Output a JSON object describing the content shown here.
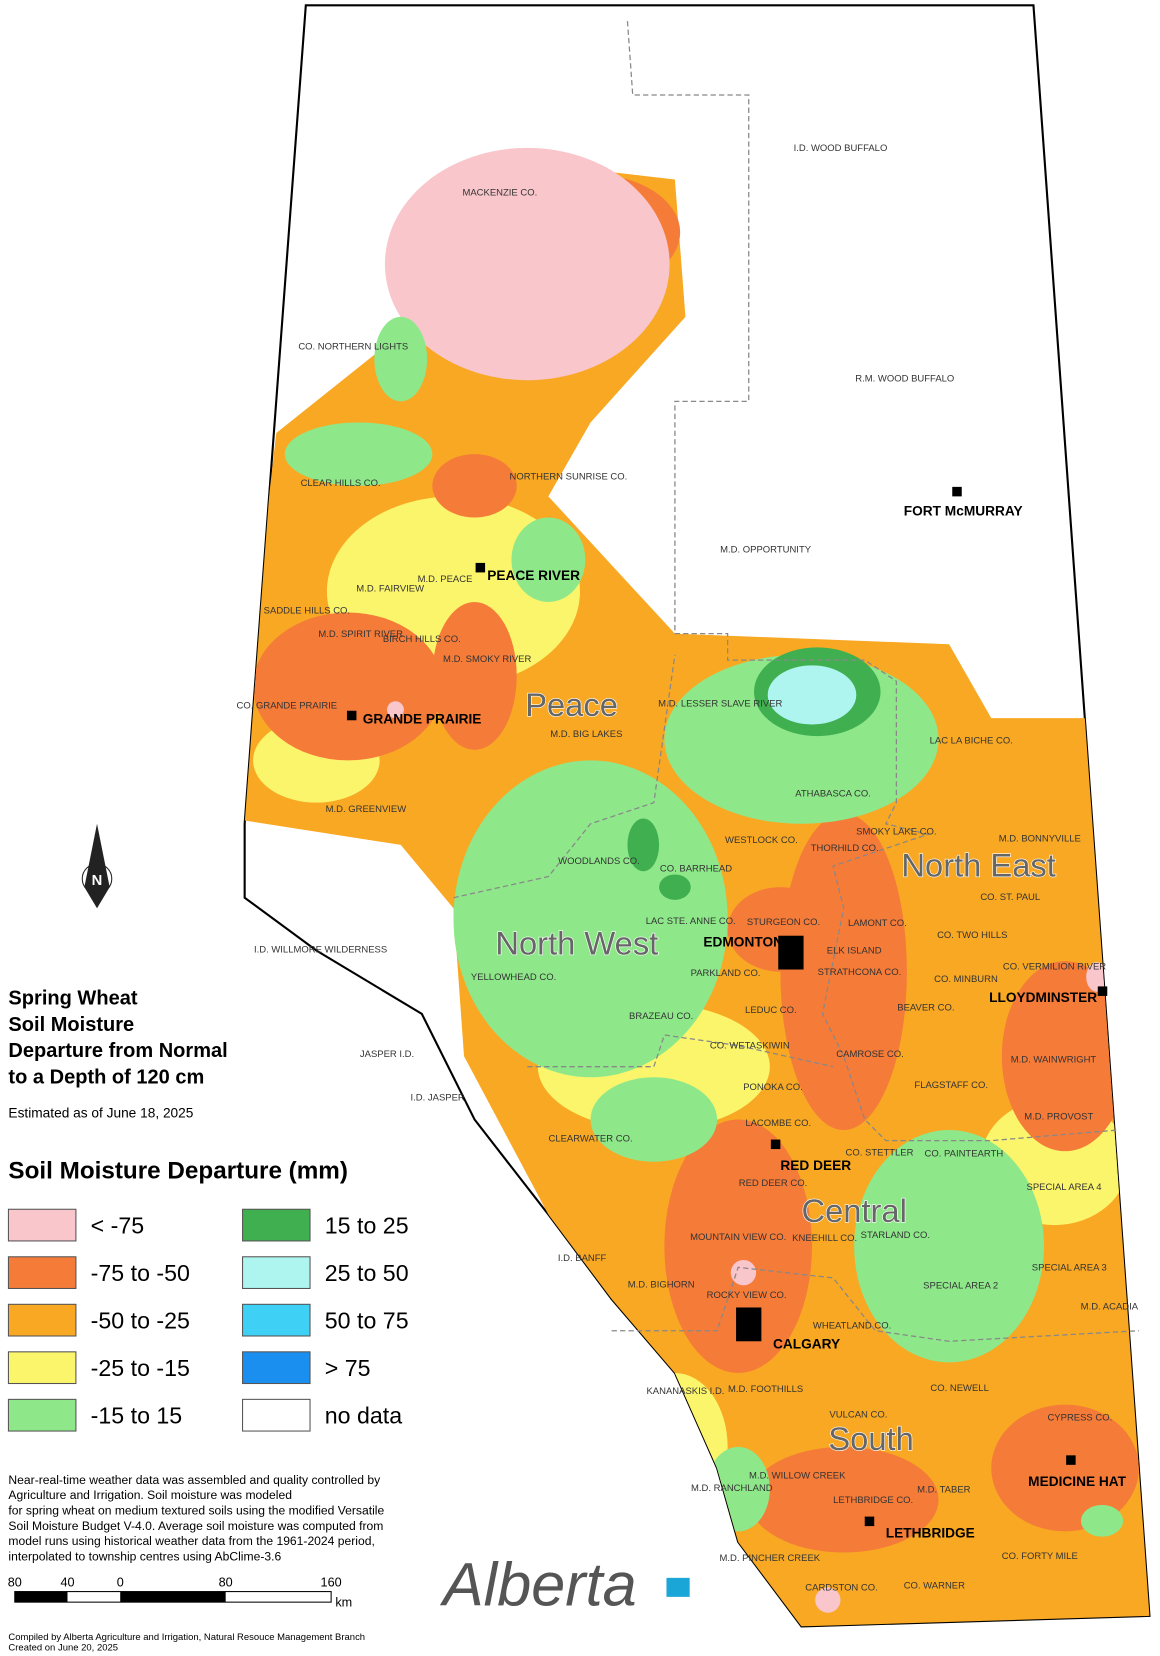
{
  "title_lines": [
    "Spring Wheat",
    "Soil Moisture",
    "Departure from Normal",
    "to a Depth of 120 cm"
  ],
  "estimate_date": "Estimated as of June 18, 2025",
  "legend": {
    "title": "Soil Moisture Departure (mm)",
    "items": [
      {
        "label": "< -75",
        "color": "#f8c6cb"
      },
      {
        "label": "-75 to -50",
        "color": "#f57b39"
      },
      {
        "label": "-50 to -25",
        "color": "#f8a823"
      },
      {
        "label": "-25 to -15",
        "color": "#fbf56b"
      },
      {
        "label": "-15 to 15",
        "color": "#8ee88a"
      },
      {
        "label": "15 to 25",
        "color": "#3faf4f"
      },
      {
        "label": "25 to 50",
        "color": "#aef4ef"
      },
      {
        "label": "50 to 75",
        "color": "#3ed1f5"
      },
      {
        "label": "> 75",
        "color": "#1b8fef"
      },
      {
        "label": "no data",
        "color": "#ffffff"
      }
    ]
  },
  "regions": [
    "Peace",
    "North West",
    "North East",
    "Central",
    "South"
  ],
  "cities": [
    "FORT McMURRAY",
    "PEACE RIVER",
    "GRANDE PRAIRIE",
    "EDMONTON",
    "LLOYDMINSTER",
    "RED DEER",
    "CALGARY",
    "MEDICINE HAT",
    "LETHBRIDGE"
  ],
  "municipalities": [
    "I.D. WOOD BUFFALO",
    "MACKENZIE CO.",
    "CO. NORTHERN LIGHTS",
    "R.M. WOOD BUFFALO",
    "CLEAR HILLS CO.",
    "NORTHERN SUNRISE CO.",
    "M.D. OPPORTUNITY",
    "M.D. FAIRVIEW",
    "M.D. PEACE",
    "SADDLE HILLS CO.",
    "M.D. SPIRIT RIVER",
    "BIRCH HILLS CO.",
    "M.D. SMOKY RIVER",
    "CO. GRANDE PRAIRIE",
    "M.D. BIG LAKES",
    "M.D. LESSER SLAVE RIVER",
    "LAC LA BICHE CO.",
    "M.D. GREENVIEW",
    "ATHABASCA CO.",
    "SMOKY LAKE CO.",
    "M.D. BONNYVILLE",
    "WESTLOCK CO.",
    "THORHILD CO.",
    "WOODLANDS CO.",
    "CO. BARRHEAD",
    "CO. ST. PAUL",
    "LAMONT CO.",
    "STURGEON CO.",
    "LAC STE. ANNE CO.",
    "CO. TWO HILLS",
    "I.D. WILLMORE WILDERNESS",
    "ELK ISLAND",
    "STRATHCONA CO.",
    "PARKLAND CO.",
    "YELLOWHEAD CO.",
    "CO. MINBURN",
    "CO. VERMILION RIVER",
    "BEAVER CO.",
    "LEDUC CO.",
    "BRAZEAU CO.",
    "JASPER I.D.",
    "CO. WETASKIWIN",
    "CAMROSE CO.",
    "M.D. WAINWRIGHT",
    "FLAGSTAFF CO.",
    "PONOKA CO.",
    "I.D. JASPER",
    "M.D. PROVOST",
    "LACOMBE CO.",
    "CLEARWATER CO.",
    "CO. STETTLER",
    "CO. PAINTEARTH",
    "RED DEER CO.",
    "SPECIAL AREA 4",
    "STARLAND CO.",
    "MOUNTAIN VIEW CO.",
    "KNEEHILL CO.",
    "I.D. BANFF",
    "SPECIAL AREA 3",
    "M.D. BIGHORN",
    "SPECIAL AREA 2",
    "ROCKY VIEW CO.",
    "M.D. ACADIA",
    "WHEATLAND CO.",
    "CO. NEWELL",
    "M.D. FOOTHILLS",
    "KANANASKIS I.D.",
    "CYPRESS CO.",
    "VULCAN CO.",
    "M.D. WILLOW CREEK",
    "M.D. RANCHLAND",
    "M.D. TABER",
    "LETHBRIDGE CO.",
    "M.D. PINCHER CREEK",
    "CO. FORTY MILE",
    "CARDSTON CO.",
    "CO. WARNER"
  ],
  "notes": [
    "Near-real-time weather data was assembled and quality controlled by",
    "Agriculture and Irrigation.  Soil moisture was modeled",
    "for spring wheat on medium textured soils using the modified Versatile",
    "Soil Moisture Budget V-4.0.  Average soil moisture was computed from",
    "model runs using historical weather data from the 1961-2024 period,",
    "interpolated to township centres using AbClime-3.6"
  ],
  "scale": {
    "ticks": [
      "80",
      "40",
      "0",
      "80",
      "160"
    ],
    "unit": "km"
  },
  "north": "N",
  "logo": "Alberta",
  "credits": [
    "Compiled by Alberta Agriculture and Irrigation, Natural Resouce Management Branch",
    "Created on June 20, 2025"
  ]
}
